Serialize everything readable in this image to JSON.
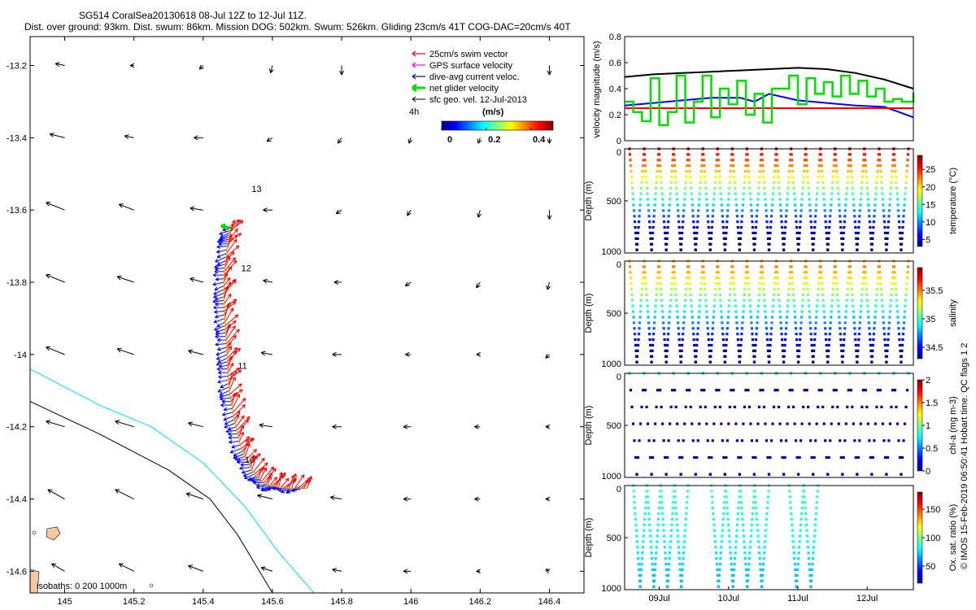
{
  "figure": {
    "title_line1": "SG514 CoralSea20130618 08-Jul 12Z to 12-Jul 11Z.",
    "title_line2": "Dist. over ground: 93km. Dist. swum: 86km. Mission DOG: 502km. Swum: 526km. Gliding 23cm/s 41T COG-DAC=20cm/s 40T",
    "footer_note": "© IMOS 15-Feb-2019 06:50:41 Hobart time. QC flags 1  2"
  },
  "chart_data": [
    {
      "type": "scatter",
      "panel": "map",
      "xticks": [
        "145",
        "145.2",
        "145.4",
        "145.6",
        "145.8",
        "146",
        "146.2",
        "146.4"
      ],
      "yticks": [
        "-13.2",
        "-13.4",
        "-13.6",
        "-13.8",
        "-14",
        "-14.2",
        "-14.4",
        "-14.6"
      ],
      "xlim": [
        144.9,
        146.5
      ],
      "ylim": [
        -14.66,
        -13.12
      ],
      "legend": {
        "placement": "top-right",
        "entries": [
          {
            "label": "25cm/s swim vector",
            "color": "#ff0000"
          },
          {
            "label": "GPS surface velocity",
            "color": "#ff00ff"
          },
          {
            "label": "dive-avg current veloc.",
            "color": "#0000ff"
          },
          {
            "label": "net glider velocity",
            "color": "#00dd00"
          },
          {
            "label": "sfc geo. vel. 12-Jul-2013",
            "color": "#000000"
          }
        ],
        "time_label": "4h"
      },
      "colorbar": {
        "unit": "(m/s)",
        "ticks": [
          "0",
          "0.2",
          "0.4"
        ],
        "range": [
          0,
          0.5
        ]
      },
      "day_labels": [
        {
          "text": "13",
          "lon": 145.54,
          "lat": -13.55
        },
        {
          "text": "12",
          "lon": 145.51,
          "lat": -13.77
        },
        {
          "text": "11",
          "lon": 145.5,
          "lat": -14.04
        },
        {
          "text": "10",
          "lon": 145.52,
          "lat": -14.3
        }
      ],
      "isobath_label": "isobaths: 0  200  1000m",
      "track": [
        [
          145.48,
          -13.65
        ],
        [
          145.47,
          -13.7
        ],
        [
          145.46,
          -13.78
        ],
        [
          145.46,
          -13.86
        ],
        [
          145.465,
          -13.94
        ],
        [
          145.47,
          -14.02
        ],
        [
          145.475,
          -14.1
        ],
        [
          145.49,
          -14.18
        ],
        [
          145.51,
          -14.26
        ],
        [
          145.54,
          -14.32
        ],
        [
          145.58,
          -14.36
        ],
        [
          145.63,
          -14.37
        ],
        [
          145.7,
          -14.37
        ]
      ],
      "isobath_200": [
        [
          144.9,
          -14.04
        ],
        [
          145.1,
          -14.14
        ],
        [
          145.25,
          -14.2
        ],
        [
          145.4,
          -14.3
        ],
        [
          145.52,
          -14.42
        ],
        [
          145.62,
          -14.55
        ],
        [
          145.72,
          -14.66
        ]
      ],
      "isobath_1000": [
        [
          144.9,
          -14.13
        ],
        [
          145.1,
          -14.22
        ],
        [
          145.3,
          -14.32
        ],
        [
          145.42,
          -14.4
        ],
        [
          145.5,
          -14.5
        ],
        [
          145.6,
          -14.66
        ]
      ],
      "vectors": [
        {
          "lat": -13.2,
          "u": [
            -0.05,
            -0.02,
            -0.02,
            -0.01,
            0.0,
            0.0,
            0.0,
            0.0
          ],
          "v": [
            0.01,
            0.0,
            -0.02,
            -0.04,
            -0.05,
            0.0,
            0.0,
            -0.05
          ]
        },
        {
          "lat": -13.4,
          "u": [
            -0.08,
            -0.05,
            -0.05,
            -0.03,
            -0.02,
            -0.01,
            -0.01,
            0.0
          ],
          "v": [
            0.02,
            0.01,
            0.0,
            -0.02,
            -0.03,
            -0.03,
            -0.03,
            -0.03
          ]
        },
        {
          "lat": -13.6,
          "u": [
            -0.1,
            -0.08,
            -0.07,
            -0.05,
            -0.03,
            -0.02,
            -0.01,
            0.0
          ],
          "v": [
            0.04,
            0.03,
            0.01,
            0.0,
            -0.02,
            -0.03,
            -0.04,
            -0.05
          ]
        },
        {
          "lat": -13.8,
          "u": [
            -0.1,
            -0.09,
            -0.07,
            -0.05,
            -0.04,
            -0.03,
            -0.02,
            -0.01
          ],
          "v": [
            0.04,
            0.03,
            0.02,
            0.01,
            0.0,
            -0.02,
            -0.03,
            -0.04
          ]
        },
        {
          "lat": -14.0,
          "u": [
            -0.1,
            -0.09,
            -0.08,
            -0.06,
            -0.05,
            -0.03,
            -0.02,
            -0.02
          ],
          "v": [
            0.04,
            0.03,
            0.02,
            0.01,
            0.0,
            0.0,
            0.0,
            -0.02
          ]
        },
        {
          "lat": -14.2,
          "u": [
            -0.1,
            -0.1,
            -0.08,
            -0.07,
            -0.05,
            -0.04,
            -0.03,
            -0.02
          ],
          "v": [
            0.03,
            0.03,
            0.02,
            0.01,
            0.0,
            0.0,
            0.0,
            0.0
          ]
        },
        {
          "lat": -14.4,
          "u": [
            -0.09,
            -0.1,
            -0.09,
            -0.08,
            -0.06,
            -0.04,
            -0.03,
            -0.02
          ],
          "v": [
            0.05,
            0.05,
            0.03,
            0.02,
            0.01,
            0.0,
            0.0,
            0.0
          ]
        },
        {
          "lat": -14.6,
          "u": [
            -0.07,
            -0.08,
            -0.08,
            -0.06,
            -0.05,
            -0.04,
            -0.02,
            -0.02
          ],
          "v": [
            0.04,
            0.04,
            0.03,
            0.02,
            0.01,
            0.0,
            0.0,
            0.01
          ]
        }
      ]
    },
    {
      "type": "line",
      "panel": "velocity",
      "ylabel": "velocity magnitude (m/s)",
      "yticks": [
        "0",
        "0.2",
        "0.4",
        "0.6",
        "0.8"
      ],
      "ylim": [
        0,
        0.8
      ],
      "xlim": [
        0,
        1
      ],
      "series": [
        {
          "color": "#000000",
          "x": [
            0,
            0.1,
            0.2,
            0.3,
            0.4,
            0.5,
            0.6,
            0.7,
            0.8,
            0.9,
            1.0
          ],
          "y": [
            0.49,
            0.51,
            0.52,
            0.53,
            0.54,
            0.55,
            0.56,
            0.55,
            0.52,
            0.47,
            0.4
          ]
        },
        {
          "color": "#0000ff",
          "x": [
            0,
            0.1,
            0.2,
            0.3,
            0.4,
            0.45,
            0.5,
            0.6,
            0.7,
            0.8,
            0.9,
            1.0
          ],
          "y": [
            0.27,
            0.29,
            0.31,
            0.33,
            0.33,
            0.3,
            0.36,
            0.31,
            0.29,
            0.27,
            0.26,
            0.18
          ]
        },
        {
          "color": "#ff0000",
          "x": [
            0,
            1
          ],
          "y": [
            0.25,
            0.25
          ]
        },
        {
          "color": "#00dd00",
          "x": [
            0,
            0.03,
            0.06,
            0.09,
            0.12,
            0.15,
            0.18,
            0.21,
            0.24,
            0.27,
            0.3,
            0.33,
            0.36,
            0.39,
            0.42,
            0.45,
            0.48,
            0.51,
            0.54,
            0.57,
            0.6,
            0.63,
            0.66,
            0.69,
            0.72,
            0.75,
            0.78,
            0.81,
            0.84,
            0.87,
            0.9,
            0.93,
            0.96,
            1.0
          ],
          "y": [
            0.3,
            0.22,
            0.15,
            0.48,
            0.12,
            0.22,
            0.5,
            0.14,
            0.3,
            0.5,
            0.18,
            0.4,
            0.28,
            0.46,
            0.2,
            0.36,
            0.14,
            0.4,
            0.4,
            0.5,
            0.28,
            0.48,
            0.36,
            0.45,
            0.34,
            0.5,
            0.36,
            0.46,
            0.34,
            0.4,
            0.3,
            0.32,
            0.3,
            0.37
          ]
        }
      ]
    },
    {
      "type": "scatter",
      "panel": "temperature",
      "ylabel": "Depth (m)",
      "yticks": [
        "0",
        "500",
        "1000"
      ],
      "ylim": [
        0,
        1000
      ],
      "colorbar": {
        "label": "temperature (°C)",
        "ticks": [
          "5",
          "10",
          "15",
          "20",
          "25"
        ],
        "range": [
          3,
          29
        ]
      },
      "n_dives": 19,
      "max_depth": 1000
    },
    {
      "type": "scatter",
      "panel": "salinity",
      "ylabel": "Depth (m)",
      "yticks": [
        "0",
        "500",
        "1000"
      ],
      "ylim": [
        0,
        1000
      ],
      "colorbar": {
        "label": "salinity",
        "ticks": [
          "34.5",
          "35",
          "35.5"
        ],
        "range": [
          34.3,
          35.9
        ]
      },
      "n_dives": 19,
      "max_depth": 1000
    },
    {
      "type": "scatter",
      "panel": "chla",
      "ylabel": "Depth (m)",
      "yticks": [
        "0",
        "500",
        "1000"
      ],
      "ylim": [
        0,
        1000
      ],
      "colorbar": {
        "label": "chl-a (mg m-3)",
        "ticks": [
          "0",
          "0.5",
          "1",
          "1.5",
          "2"
        ],
        "range": [
          0,
          2
        ]
      },
      "n_dives": 19,
      "max_depth": 1000
    },
    {
      "type": "scatter",
      "panel": "oxygen",
      "ylabel": "Depth (m)",
      "yticks": [
        "0",
        "500",
        "1000"
      ],
      "ylim": [
        0,
        1000
      ],
      "colorbar": {
        "label": "Ox. sat. ratio (%)",
        "ticks": [
          "50",
          "100",
          "150"
        ],
        "range": [
          20,
          180
        ]
      },
      "xticks": [
        "09Jul",
        "10Jul",
        "11Jul",
        "12Jul"
      ],
      "n_dives": 10,
      "max_depth": 1000
    }
  ]
}
